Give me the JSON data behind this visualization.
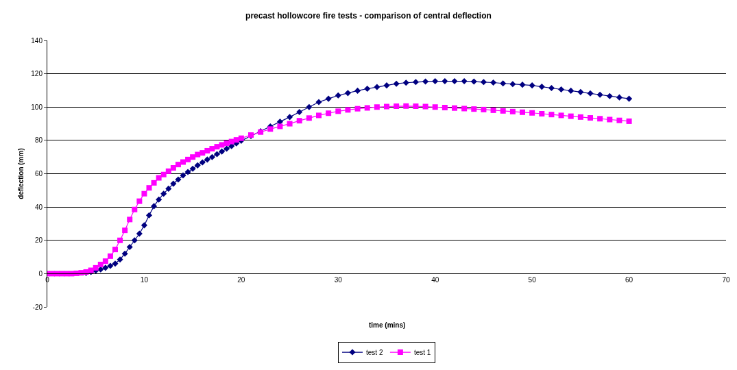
{
  "chart_data": {
    "type": "line",
    "title": "precast hollowcore fire tests - comparison of central deflection",
    "xlabel": "time (mins)",
    "ylabel": "deflection (mm)",
    "x": [
      0,
      0.5,
      1,
      1.5,
      2,
      2.5,
      3,
      3.5,
      4,
      4.5,
      5,
      5.5,
      6,
      6.5,
      7,
      7.5,
      8,
      8.5,
      9,
      9.5,
      10,
      10.5,
      11,
      11.5,
      12,
      12.5,
      13,
      13.5,
      14,
      14.5,
      15,
      15.5,
      16,
      16.5,
      17,
      17.5,
      18,
      18.5,
      19,
      19.5,
      20,
      21,
      22,
      23,
      24,
      25,
      26,
      27,
      28,
      29,
      30,
      31,
      32,
      33,
      34,
      35,
      36,
      37,
      38,
      39,
      40,
      41,
      42,
      43,
      44,
      45,
      46,
      47,
      48,
      49,
      50,
      51,
      52,
      53,
      54,
      55,
      56,
      57,
      58,
      59,
      60
    ],
    "series": [
      {
        "name": "test 2",
        "color": "#000080",
        "marker": "diamond",
        "values": [
          null,
          null,
          null,
          null,
          null,
          null,
          null,
          null,
          0.5,
          1,
          1.8,
          2.5,
          3.5,
          4.7,
          6,
          8.5,
          12,
          16,
          20,
          24,
          29,
          35,
          40.5,
          44.5,
          48,
          51,
          54,
          56.5,
          59,
          61,
          63,
          65,
          66.8,
          68.5,
          70,
          71.7,
          73.3,
          75,
          76.6,
          78.2,
          79.8,
          82.6,
          85.5,
          88.4,
          91.2,
          94,
          97,
          100,
          103,
          105,
          107,
          108.4,
          109.8,
          111,
          112,
          113,
          114,
          114.6,
          115,
          115.3,
          115.5,
          115.5,
          115.5,
          115.5,
          115.3,
          115,
          114.7,
          114.2,
          113.8,
          113.4,
          113,
          112.2,
          111.4,
          110.6,
          109.8,
          109,
          108.2,
          107.4,
          106.6,
          105.8,
          105
        ]
      },
      {
        "name": "test 1",
        "color": "#ff00ff",
        "marker": "square",
        "values": [
          0,
          0,
          0,
          0,
          0,
          0,
          0.2,
          0.5,
          1,
          2,
          3.5,
          5.5,
          7.5,
          10.5,
          14.5,
          20,
          26,
          32.5,
          38.5,
          43.5,
          48,
          51.5,
          54.5,
          57.5,
          59.5,
          61.5,
          63.5,
          65.5,
          67,
          68.5,
          70,
          71.5,
          72.5,
          73.8,
          75,
          76.2,
          77.3,
          78.3,
          79.3,
          80.3,
          81.3,
          83.2,
          85,
          86.8,
          88.4,
          90,
          91.8,
          93.4,
          95,
          96.3,
          97.5,
          98.3,
          99,
          99.5,
          100,
          100.3,
          100.5,
          100.6,
          100.5,
          100.3,
          100,
          99.7,
          99.4,
          99.1,
          98.8,
          98.5,
          98.1,
          97.7,
          97.3,
          96.9,
          96.5,
          96,
          95.5,
          95,
          94.5,
          94,
          93.5,
          93,
          92.5,
          92,
          91.5
        ]
      }
    ],
    "xlim": [
      0,
      70
    ],
    "xticks": [
      0,
      10,
      20,
      30,
      40,
      50,
      60,
      70
    ],
    "ylim": [
      -20,
      140
    ],
    "yticks": [
      -20,
      0,
      20,
      40,
      60,
      80,
      100,
      120,
      140
    ],
    "grid": "y",
    "legend": "bottom",
    "line_style": "solid"
  }
}
